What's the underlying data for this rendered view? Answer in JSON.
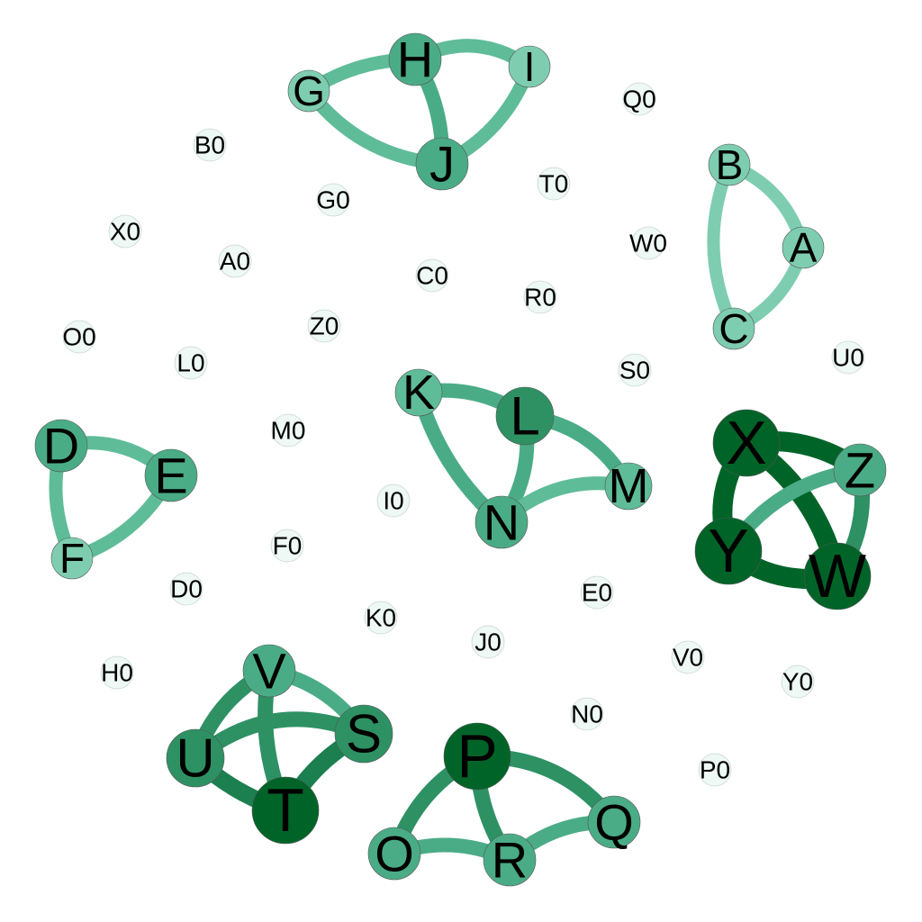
{
  "colors": {
    "level1": "#7ecdb1",
    "level2": "#5fbc98",
    "level3": "#4aac86",
    "level4": "#2e9164",
    "level5": "#1c7f4f",
    "level6": "#006428",
    "isolated": "#eef8f5"
  },
  "nodes": [
    {
      "id": "A",
      "label": "A",
      "level": 1
    },
    {
      "id": "B",
      "label": "B",
      "level": 1
    },
    {
      "id": "C",
      "label": "C",
      "level": 1
    },
    {
      "id": "D",
      "label": "D",
      "level": 3
    },
    {
      "id": "E",
      "label": "E",
      "level": 3
    },
    {
      "id": "F",
      "label": "F",
      "level": 1
    },
    {
      "id": "G",
      "label": "G",
      "level": 1
    },
    {
      "id": "H",
      "label": "H",
      "level": 3
    },
    {
      "id": "I",
      "label": "I",
      "level": 1
    },
    {
      "id": "J",
      "label": "J",
      "level": 3
    },
    {
      "id": "K",
      "label": "K",
      "level": 2
    },
    {
      "id": "L",
      "label": "L",
      "level": 4
    },
    {
      "id": "M",
      "label": "M",
      "level": 2
    },
    {
      "id": "N",
      "label": "N",
      "level": 3
    },
    {
      "id": "O",
      "label": "O",
      "level": 3
    },
    {
      "id": "P",
      "label": "P",
      "level": 6
    },
    {
      "id": "Q",
      "label": "Q",
      "level": 3
    },
    {
      "id": "R",
      "label": "R",
      "level": 3
    },
    {
      "id": "S",
      "label": "S",
      "level": 4
    },
    {
      "id": "T",
      "label": "T",
      "level": 6
    },
    {
      "id": "U",
      "label": "U",
      "level": 4
    },
    {
      "id": "V",
      "label": "V",
      "level": 3
    },
    {
      "id": "W",
      "label": "W",
      "level": 6
    },
    {
      "id": "X",
      "label": "X",
      "level": 6
    },
    {
      "id": "Y",
      "label": "Y",
      "level": 6
    },
    {
      "id": "Z",
      "label": "Z",
      "level": 3
    },
    {
      "id": "A0",
      "label": "A0",
      "level": 0
    },
    {
      "id": "B0",
      "label": "B0",
      "level": 0
    },
    {
      "id": "C0",
      "label": "C0",
      "level": 0
    },
    {
      "id": "D0",
      "label": "D0",
      "level": 0
    },
    {
      "id": "E0",
      "label": "E0",
      "level": 0
    },
    {
      "id": "F0",
      "label": "F0",
      "level": 0
    },
    {
      "id": "G0",
      "label": "G0",
      "level": 0
    },
    {
      "id": "H0",
      "label": "H0",
      "level": 0
    },
    {
      "id": "I0",
      "label": "I0",
      "level": 0
    },
    {
      "id": "J0",
      "label": "J0",
      "level": 0
    },
    {
      "id": "K0",
      "label": "K0",
      "level": 0
    },
    {
      "id": "L0",
      "label": "L0",
      "level": 0
    },
    {
      "id": "M0",
      "label": "M0",
      "level": 0
    },
    {
      "id": "N0",
      "label": "N0",
      "level": 0
    },
    {
      "id": "O0",
      "label": "O0",
      "level": 0
    },
    {
      "id": "P0",
      "label": "P0",
      "level": 0
    },
    {
      "id": "Q0",
      "label": "Q0",
      "level": 0
    },
    {
      "id": "R0",
      "label": "R0",
      "level": 0
    },
    {
      "id": "S0",
      "label": "S0",
      "level": 0
    },
    {
      "id": "T0",
      "label": "T0",
      "level": 0
    },
    {
      "id": "U0",
      "label": "U0",
      "level": 0
    },
    {
      "id": "V0",
      "label": "V0",
      "level": 0
    },
    {
      "id": "W0",
      "label": "W0",
      "level": 0
    },
    {
      "id": "X0",
      "label": "X0",
      "level": 0
    },
    {
      "id": "Y0",
      "label": "Y0",
      "level": 0
    },
    {
      "id": "Z0",
      "label": "Z0",
      "level": 0
    }
  ],
  "edges": [
    {
      "source": "B",
      "target": "A",
      "level": 1
    },
    {
      "source": "B",
      "target": "C",
      "level": 1
    },
    {
      "source": "A",
      "target": "C",
      "level": 1
    },
    {
      "source": "D",
      "target": "E",
      "level": 2
    },
    {
      "source": "D",
      "target": "F",
      "level": 2
    },
    {
      "source": "E",
      "target": "F",
      "level": 2
    },
    {
      "source": "G",
      "target": "H",
      "level": 2
    },
    {
      "source": "G",
      "target": "J",
      "level": 2
    },
    {
      "source": "H",
      "target": "I",
      "level": 2
    },
    {
      "source": "H",
      "target": "J",
      "level": 3
    },
    {
      "source": "I",
      "target": "J",
      "level": 2
    },
    {
      "source": "K",
      "target": "L",
      "level": 3
    },
    {
      "source": "K",
      "target": "N",
      "level": 3
    },
    {
      "source": "L",
      "target": "N",
      "level": 3
    },
    {
      "source": "L",
      "target": "M",
      "level": 3
    },
    {
      "source": "N",
      "target": "M",
      "level": 2
    },
    {
      "source": "X",
      "target": "Z",
      "level": 6
    },
    {
      "source": "X",
      "target": "Y",
      "level": 6
    },
    {
      "source": "X",
      "target": "W",
      "level": 6
    },
    {
      "source": "Y",
      "target": "Z",
      "level": 3
    },
    {
      "source": "Y",
      "target": "W",
      "level": 6
    },
    {
      "source": "Z",
      "target": "W",
      "level": 4
    },
    {
      "source": "V",
      "target": "U",
      "level": 4
    },
    {
      "source": "V",
      "target": "T",
      "level": 4
    },
    {
      "source": "U",
      "target": "S",
      "level": 4
    },
    {
      "source": "U",
      "target": "T",
      "level": 5
    },
    {
      "source": "S",
      "target": "T",
      "level": 5
    },
    {
      "source": "V",
      "target": "S",
      "level": 3
    },
    {
      "source": "P",
      "target": "O",
      "level": 4
    },
    {
      "source": "P",
      "target": "R",
      "level": 4
    },
    {
      "source": "P",
      "target": "Q",
      "level": 4
    },
    {
      "source": "O",
      "target": "R",
      "level": 3
    },
    {
      "source": "R",
      "target": "Q",
      "level": 3
    }
  ]
}
